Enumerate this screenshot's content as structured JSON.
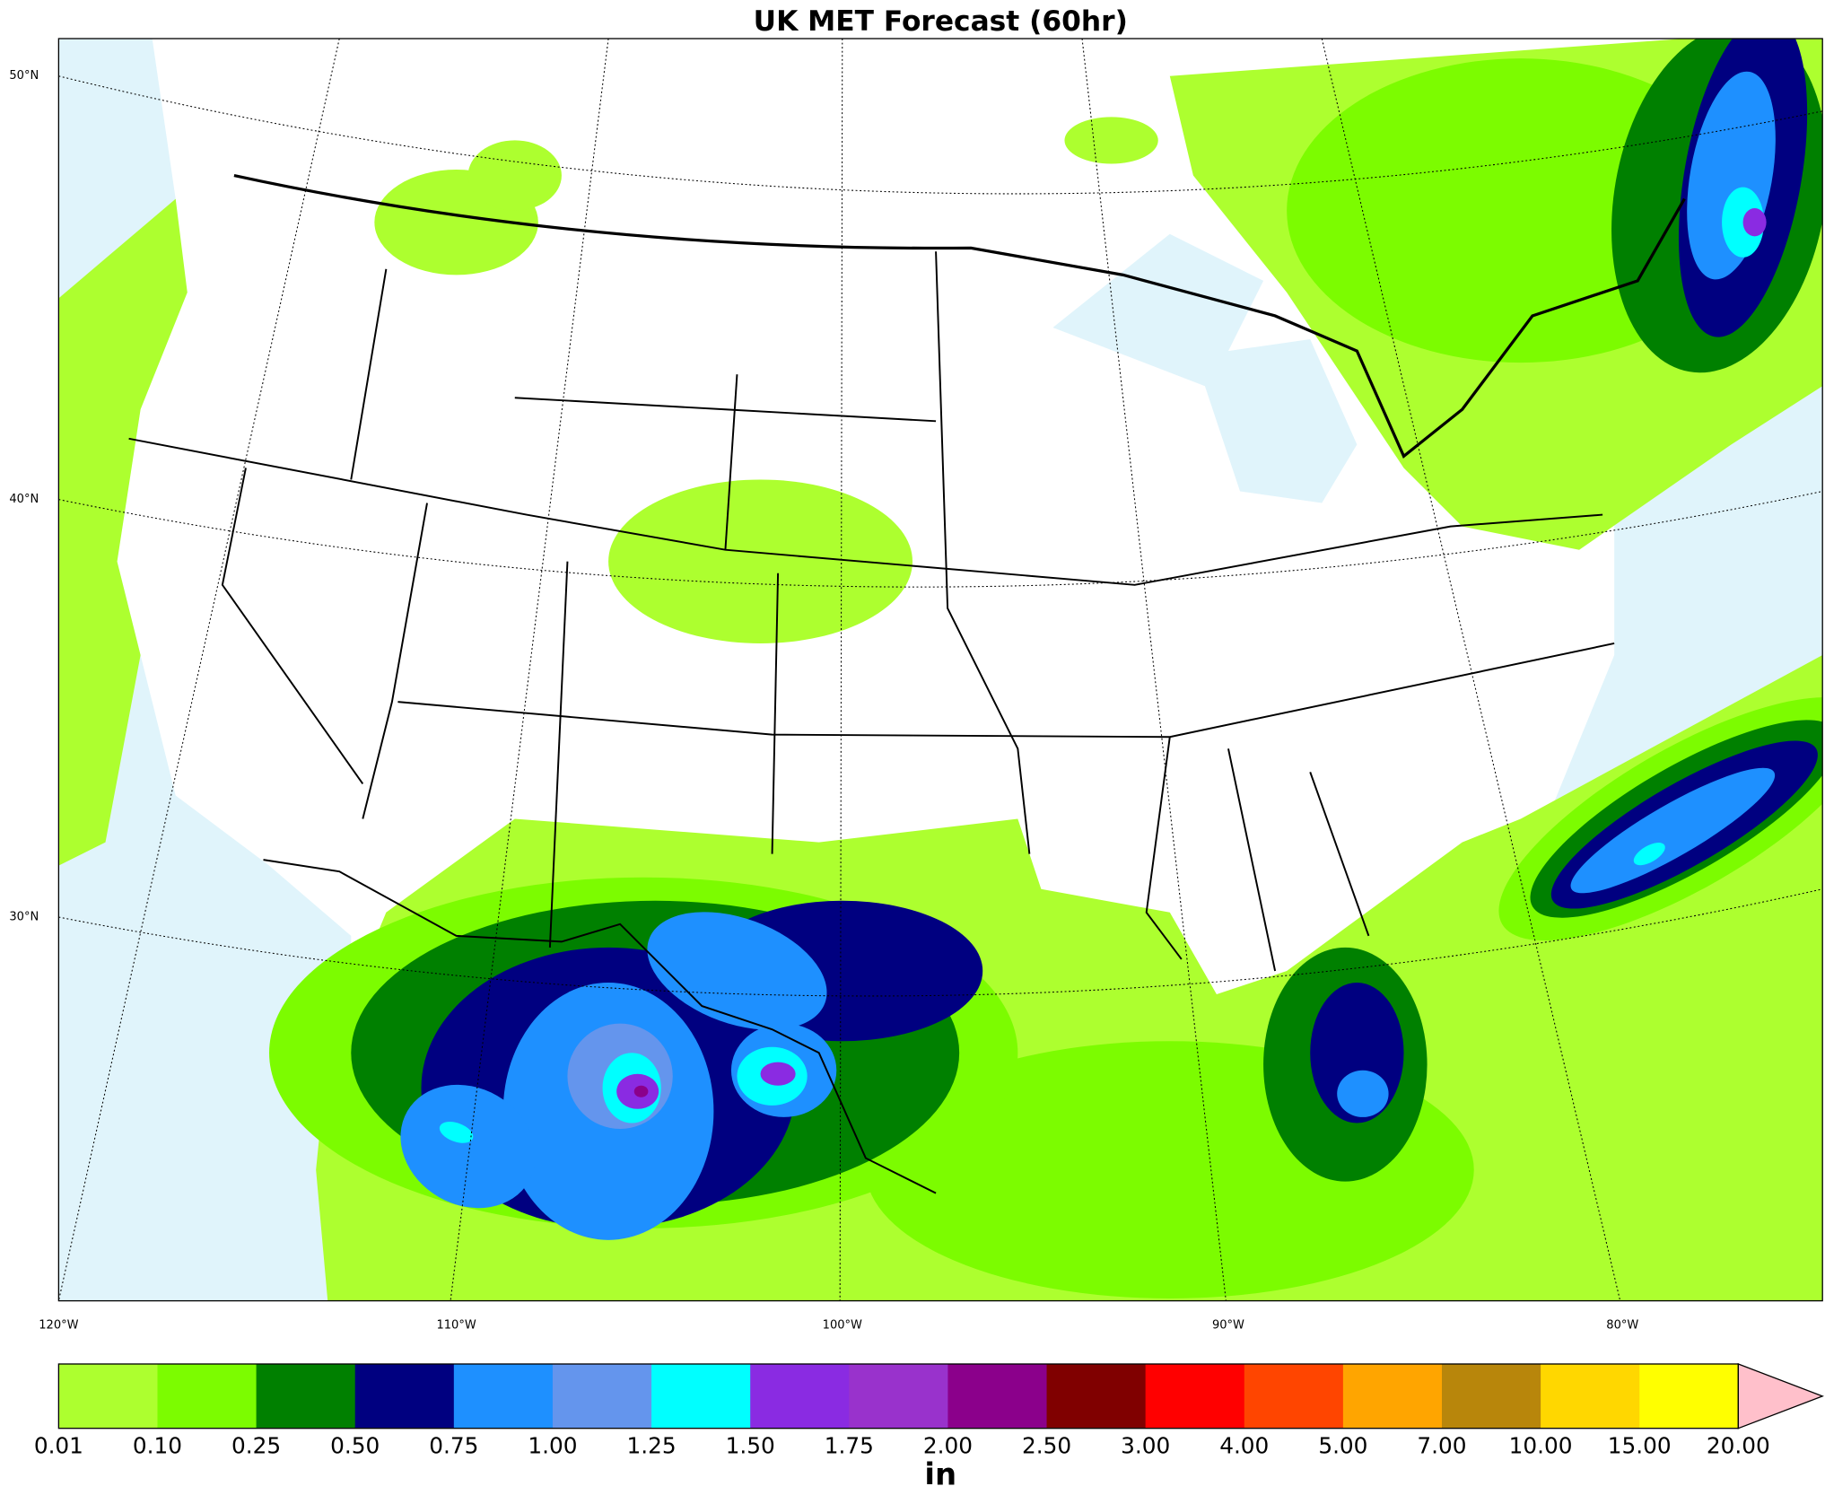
{
  "map": {
    "title": "UK MET Forecast (60hr)",
    "lat_labels": [
      "50°N",
      "40°N",
      "30°N"
    ],
    "lon_labels": [
      "120°W",
      "110°W",
      "100°W",
      "90°W",
      "80°W"
    ],
    "colorbar": {
      "levels": [
        "0.01",
        "0.10",
        "0.25",
        "0.50",
        "0.75",
        "1.00",
        "1.25",
        "1.50",
        "1.75",
        "2.00",
        "2.50",
        "3.00",
        "4.00",
        "5.00",
        "7.00",
        "10.00",
        "15.00",
        "20.00"
      ],
      "colors": [
        "#adff2f",
        "#7cfc00",
        "#008000",
        "#000080",
        "#1e90ff",
        "#6495ed",
        "#00ffff",
        "#8a2be2",
        "#9932cc",
        "#8b008b",
        "#800000",
        "#ff0000",
        "#ff4500",
        "#ffa500",
        "#b8860b",
        "#ffd700",
        "#ffff00",
        "#ffc0cb"
      ],
      "unit": "in"
    }
  }
}
